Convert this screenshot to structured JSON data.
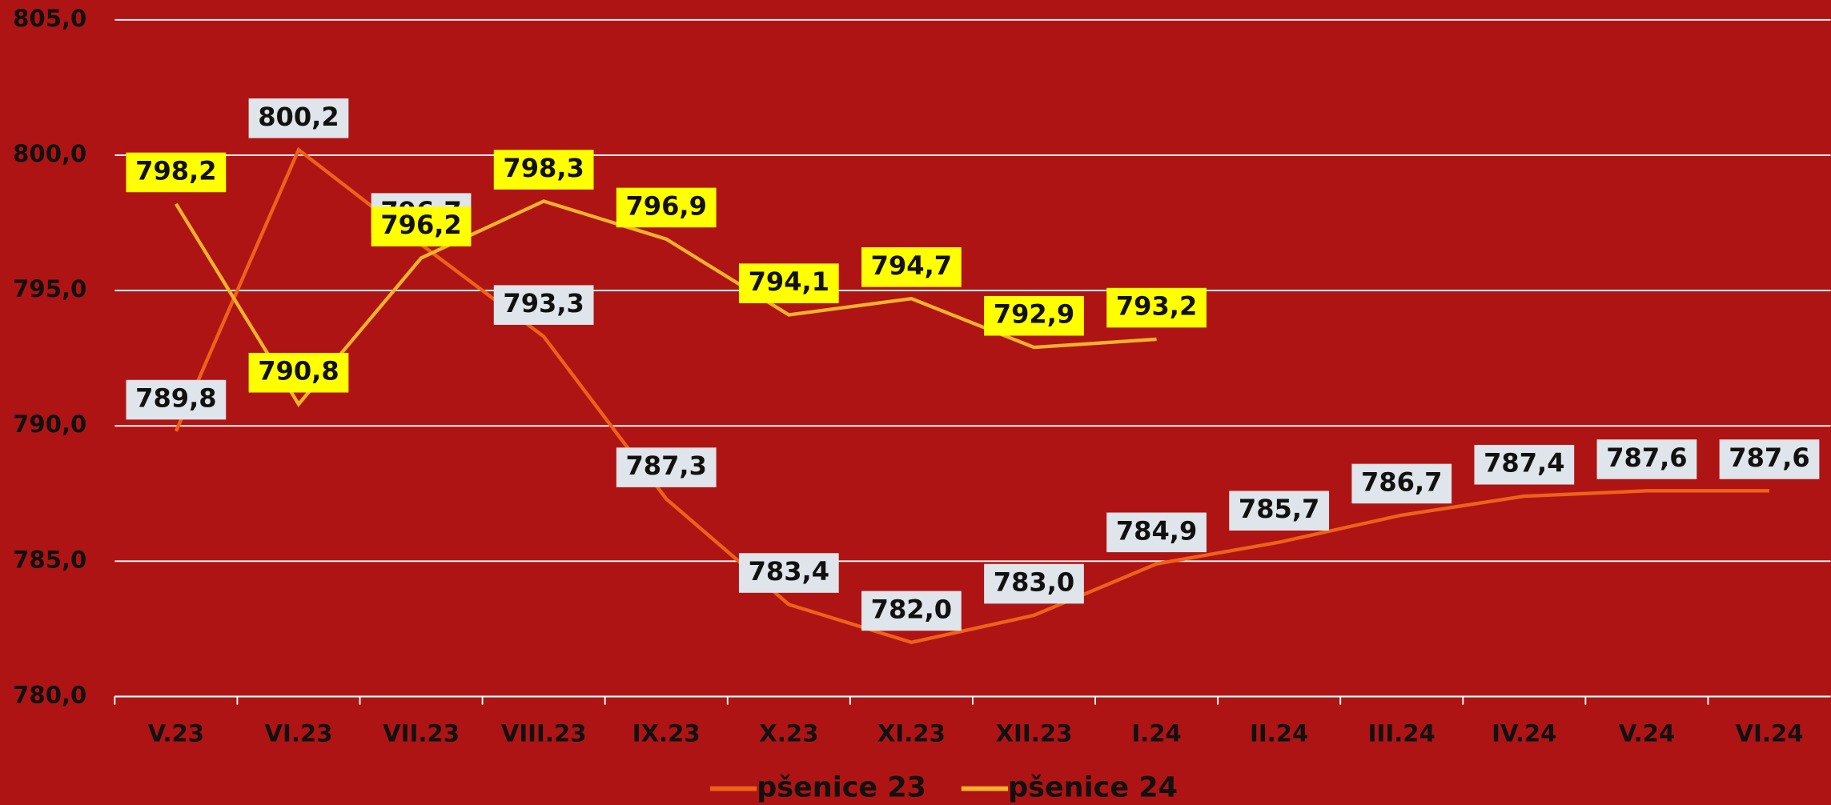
{
  "chart_data": {
    "type": "line",
    "categories": [
      "V.23",
      "VI.23",
      "VII.23",
      "VIII.23",
      "IX.23",
      "X.23",
      "XI.23",
      "XII.23",
      "I.24",
      "II.24",
      "III.24",
      "IV.24",
      "V.24",
      "VI.24"
    ],
    "series": [
      {
        "name": "pšenice 23",
        "color": "#ee6218",
        "label_bg": "#dfe5ea",
        "values": [
          789.8,
          800.2,
          796.7,
          793.3,
          787.3,
          783.4,
          782.0,
          783.0,
          784.9,
          785.7,
          786.7,
          787.4,
          787.6,
          787.6
        ],
        "value_labels": [
          "789,8",
          "800,2",
          "796,7",
          "793,3",
          "787,3",
          "783,4",
          "782,0",
          "783,0",
          "784,9",
          "785,7",
          "786,7",
          "787,4",
          "787,6",
          "787,6"
        ]
      },
      {
        "name": "pšenice 24",
        "color": "#f2b22c",
        "label_bg": "#ffff00",
        "values": [
          798.2,
          790.8,
          796.2,
          798.3,
          796.9,
          794.1,
          794.7,
          792.9,
          793.2,
          null,
          null,
          null,
          null,
          null
        ],
        "value_labels": [
          "798,2",
          "790,8",
          "796,2",
          "798,3",
          "796,9",
          "794,1",
          "794,7",
          "792,9",
          "793,2",
          null,
          null,
          null,
          null,
          null
        ]
      }
    ],
    "ylim": [
      780,
      805
    ],
    "yticks": [
      {
        "value": 780,
        "label": "780,0"
      },
      {
        "value": 785,
        "label": "785,0"
      },
      {
        "value": 790,
        "label": "790,0"
      },
      {
        "value": 795,
        "label": "795,0"
      },
      {
        "value": 800,
        "label": "800,0"
      },
      {
        "value": 805,
        "label": "805,0"
      }
    ],
    "grid": true,
    "legend": "bottom",
    "background": "#ae1414"
  }
}
